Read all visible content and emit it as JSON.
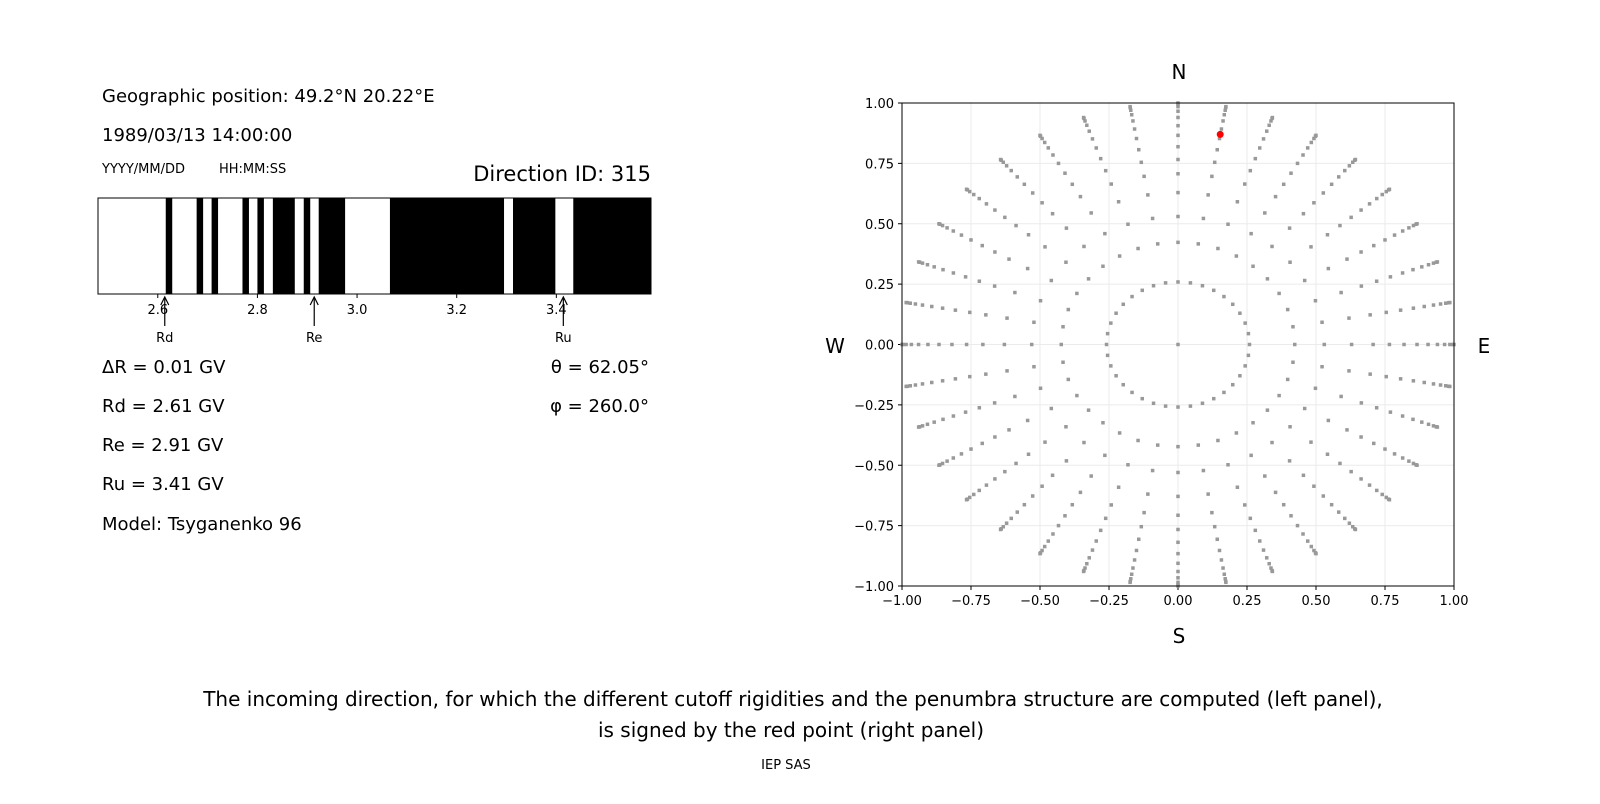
{
  "left_panel": {
    "geo_position": "Geographic position: 49.2°N 20.22°E",
    "datetime": "1989/03/13 14:00:00",
    "date_format": "YYYY/MM/DD",
    "time_format": "HH:MM:SS",
    "direction_id": "Direction ID: 315",
    "delta_r": "ΔR = 0.01 GV",
    "rd": "Rd = 2.61 GV",
    "re": "Re = 2.91 GV",
    "ru": "Ru = 3.41 GV",
    "model": "Model: Tsyganenko 96",
    "theta": "θ = 62.05°",
    "phi": "φ = 260.0°"
  },
  "caption": {
    "line1": "The incoming direction, for which the different cutoff rigidities and the penumbra structure are computed (left panel),",
    "line2": "is signed by the red point (right panel)",
    "footer": "IEP SAS"
  },
  "chart_data": [
    {
      "type": "bar",
      "name": "penumbra",
      "xlim": [
        2.48,
        3.59
      ],
      "xticks": [
        "2.6",
        "2.8",
        "3.0",
        "3.2",
        "3.4"
      ],
      "xtick_values": [
        2.6,
        2.8,
        3.0,
        3.2,
        3.4
      ],
      "black_intervals_gv": [
        [
          2.616,
          2.629
        ],
        [
          2.678,
          2.691
        ],
        [
          2.708,
          2.721
        ],
        [
          2.77,
          2.783
        ],
        [
          2.8,
          2.813
        ],
        [
          2.831,
          2.875
        ],
        [
          2.893,
          2.906
        ],
        [
          2.923,
          2.976
        ],
        [
          3.066,
          3.295
        ],
        [
          3.313,
          3.398
        ],
        [
          3.434,
          3.59
        ]
      ],
      "colors": {
        "forbidden": "#000000",
        "allowed": "#ffffff"
      },
      "markers": [
        {
          "label": "Rd",
          "value": 2.61
        },
        {
          "label": "Re",
          "value": 2.91
        },
        {
          "label": "Ru",
          "value": 3.41
        }
      ]
    },
    {
      "type": "scatter",
      "name": "directions",
      "xlim": [
        -1,
        1
      ],
      "ylim": [
        -1,
        1
      ],
      "xticks": [
        "−1.00",
        "−0.75",
        "−0.50",
        "−0.25",
        "0.00",
        "0.25",
        "0.50",
        "0.75",
        "1.00"
      ],
      "yticks": [
        "−1.00",
        "−0.75",
        "−0.50",
        "−0.25",
        "0.00",
        "0.25",
        "0.50",
        "0.75",
        "1.00"
      ],
      "tick_values": [
        -1,
        -0.75,
        -0.5,
        -0.25,
        0,
        0.25,
        0.5,
        0.75,
        1
      ],
      "grid": true,
      "labels": {
        "north": "N",
        "south": "S",
        "west": "W",
        "east": "E"
      },
      "azimuth_step_deg": 10,
      "ray_radii": [
        0.259,
        0.423,
        0.53,
        0.629,
        0.707,
        0.766,
        0.819,
        0.866,
        0.906,
        0.94,
        0.966,
        0.985,
        0.996,
        1.0
      ],
      "center_point": [
        0,
        0
      ],
      "highlight_point": {
        "x": 0.153,
        "y": 0.87
      },
      "colors": {
        "points": "#999999",
        "highlight": "#ff0000",
        "grid": "#ebebeb"
      }
    }
  ]
}
